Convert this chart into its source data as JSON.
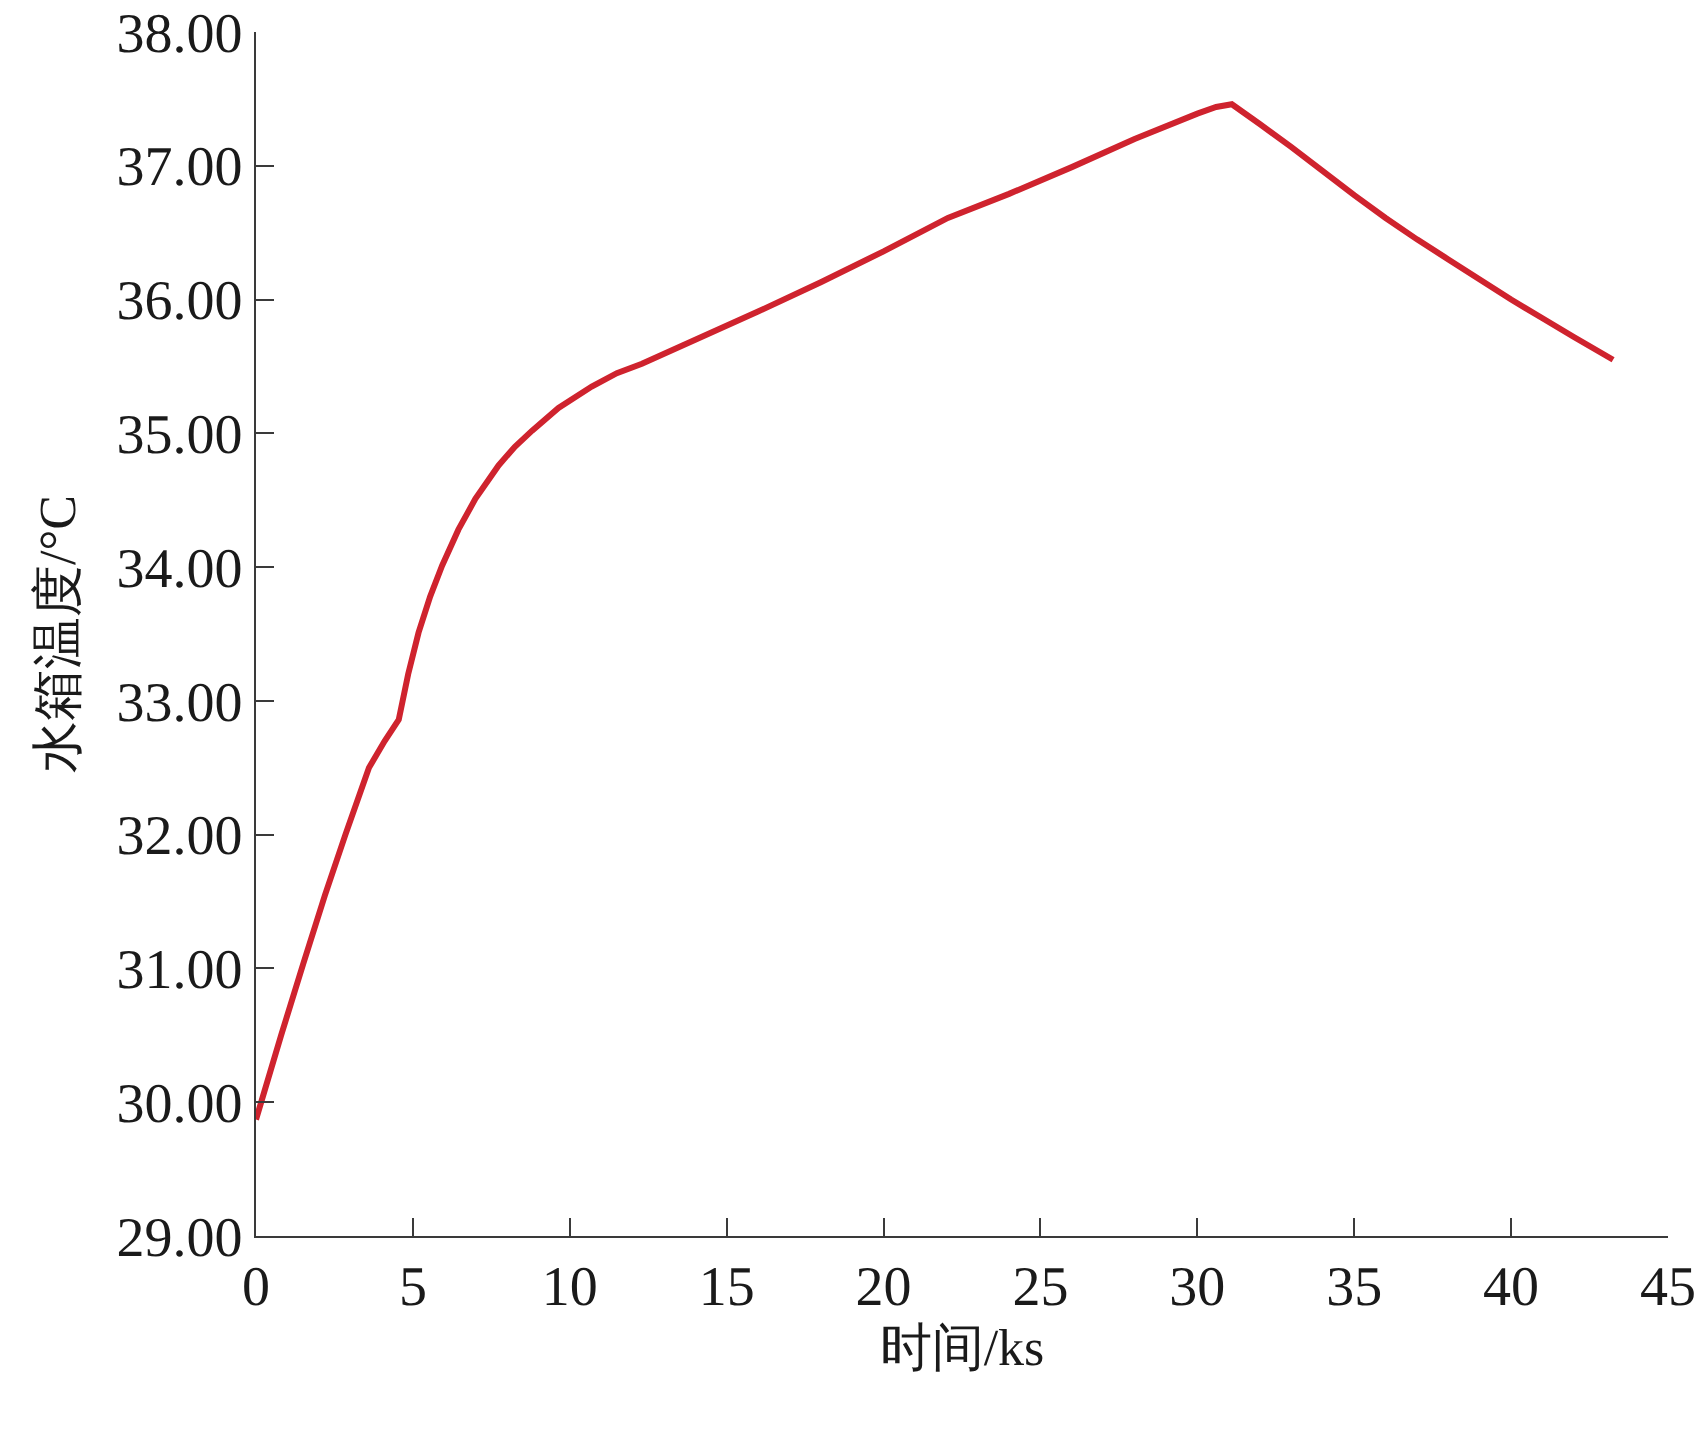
{
  "chart_data": {
    "type": "line",
    "xlabel": "时间/ks",
    "ylabel": "水箱温度/°C",
    "x": [
      0,
      0.8,
      1.5,
      2.2,
      2.85,
      3.3,
      3.6,
      4.1,
      4.55,
      4.85,
      5.18,
      5.55,
      5.93,
      6.45,
      6.99,
      7.73,
      8.25,
      8.8,
      9.64,
      10.7,
      11.5,
      12.3,
      14,
      16,
      18,
      20,
      22.05,
      24,
      26,
      28,
      30,
      30.6,
      31.1,
      32,
      33,
      34,
      35,
      36,
      37,
      38,
      39,
      40,
      41,
      42,
      43.25
    ],
    "values": [
      29.87,
      30.5,
      31.03,
      31.55,
      32.0,
      32.3,
      32.5,
      32.7,
      32.86,
      33.2,
      33.51,
      33.78,
      34.01,
      34.28,
      34.51,
      34.76,
      34.9,
      35.02,
      35.19,
      35.35,
      35.45,
      35.52,
      35.7,
      35.91,
      36.13,
      36.36,
      36.61,
      36.79,
      36.99,
      37.2,
      37.39,
      37.44,
      37.46,
      37.31,
      37.14,
      36.96,
      36.78,
      36.61,
      36.45,
      36.3,
      36.15,
      36.0,
      35.86,
      35.72,
      35.55
    ],
    "color": "#cf232e",
    "line_style": "solid",
    "xlim": [
      0,
      45
    ],
    "xticks": [
      0,
      5,
      10,
      15,
      20,
      25,
      30,
      35,
      40,
      45
    ],
    "ylim": [
      29,
      38
    ],
    "yticks": [
      {
        "value": 29,
        "label": "29.00"
      },
      {
        "value": 30,
        "label": "30.00"
      },
      {
        "value": 31,
        "label": "31.00"
      },
      {
        "value": 32,
        "label": "32.00"
      },
      {
        "value": 33,
        "label": "33.00"
      },
      {
        "value": 34,
        "label": "34.00"
      },
      {
        "value": 35,
        "label": "35.00"
      },
      {
        "value": 36,
        "label": "36.00"
      },
      {
        "value": 37,
        "label": "37.00"
      },
      {
        "value": 38,
        "label": "38.00"
      }
    ]
  }
}
